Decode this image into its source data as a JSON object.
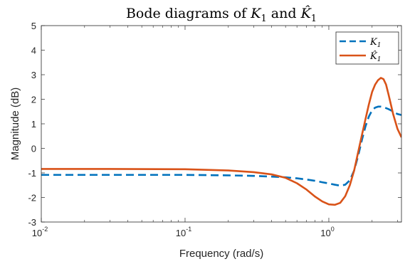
{
  "chart_data": {
    "type": "line",
    "title": "Bode diagrams of K₁ and K̂₁",
    "title_parts": {
      "prefix": "Bode diagrams of ",
      "sym1": "K",
      "sub1": "1",
      "mid": " and ",
      "sym2": "K̂",
      "sub2": "1"
    },
    "xlabel": "Frequency (rad/s)",
    "ylabel": "Magnitude (dB)",
    "xscale": "log",
    "xlim": [
      0.01,
      3.2
    ],
    "ylim": [
      -3,
      5
    ],
    "yticks": [
      "-3",
      "-2",
      "-1",
      "0",
      "1",
      "2",
      "3",
      "4",
      "5"
    ],
    "xticks": [
      {
        "base": "10",
        "exp": "-2"
      },
      {
        "base": "10",
        "exp": "-1"
      },
      {
        "base": "10",
        "exp": "0"
      }
    ],
    "legend_position": "top-right",
    "series": [
      {
        "name": "K₁",
        "legend_symbol": "K",
        "legend_sub": "1",
        "color": "#0072BD",
        "style": "dashed",
        "x": [
          0.01,
          0.03,
          0.1,
          0.2,
          0.3,
          0.4,
          0.5,
          0.6,
          0.7,
          0.8,
          0.9,
          1.0,
          1.1,
          1.2,
          1.3,
          1.4,
          1.5,
          1.6,
          1.7,
          1.8,
          1.9,
          2.0,
          2.1,
          2.2,
          2.3,
          2.4,
          2.5,
          2.6,
          2.8,
          3.0,
          3.2
        ],
        "y": [
          -1.08,
          -1.08,
          -1.08,
          -1.1,
          -1.12,
          -1.15,
          -1.18,
          -1.22,
          -1.27,
          -1.32,
          -1.38,
          -1.43,
          -1.48,
          -1.52,
          -1.48,
          -1.3,
          -0.9,
          -0.3,
          0.35,
          0.9,
          1.3,
          1.55,
          1.66,
          1.7,
          1.7,
          1.68,
          1.64,
          1.6,
          1.5,
          1.4,
          1.36
        ]
      },
      {
        "name": "K̂₁",
        "legend_symbol": "K̂",
        "legend_sub": "1",
        "color": "#D95319",
        "style": "solid",
        "x": [
          0.01,
          0.03,
          0.1,
          0.2,
          0.3,
          0.4,
          0.5,
          0.6,
          0.7,
          0.8,
          0.9,
          1.0,
          1.1,
          1.2,
          1.3,
          1.4,
          1.5,
          1.6,
          1.7,
          1.8,
          1.9,
          2.0,
          2.1,
          2.2,
          2.3,
          2.4,
          2.5,
          2.6,
          2.8,
          3.0,
          3.2
        ],
        "y": [
          -0.84,
          -0.84,
          -0.85,
          -0.9,
          -0.97,
          -1.06,
          -1.2,
          -1.42,
          -1.68,
          -1.96,
          -2.16,
          -2.28,
          -2.3,
          -2.22,
          -1.95,
          -1.5,
          -0.9,
          -0.15,
          0.55,
          1.2,
          1.8,
          2.3,
          2.6,
          2.78,
          2.87,
          2.82,
          2.6,
          2.2,
          1.4,
          0.8,
          0.45
        ]
      }
    ]
  }
}
